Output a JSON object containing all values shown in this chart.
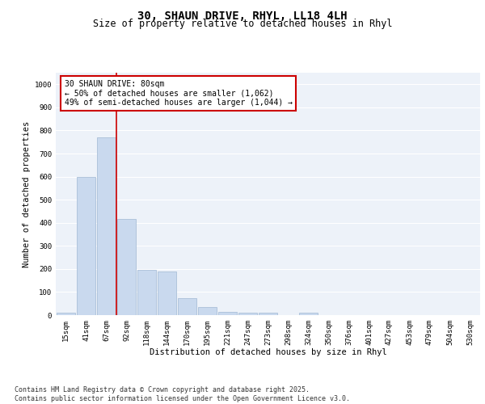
{
  "title": "30, SHAUN DRIVE, RHYL, LL18 4LH",
  "subtitle": "Size of property relative to detached houses in Rhyl",
  "xlabel": "Distribution of detached houses by size in Rhyl",
  "ylabel": "Number of detached properties",
  "categories": [
    "15sqm",
    "41sqm",
    "67sqm",
    "92sqm",
    "118sqm",
    "144sqm",
    "170sqm",
    "195sqm",
    "221sqm",
    "247sqm",
    "273sqm",
    "298sqm",
    "324sqm",
    "350sqm",
    "376sqm",
    "401sqm",
    "427sqm",
    "453sqm",
    "479sqm",
    "504sqm",
    "530sqm"
  ],
  "values": [
    10,
    600,
    770,
    415,
    195,
    190,
    75,
    35,
    15,
    12,
    10,
    0,
    10,
    0,
    0,
    0,
    0,
    0,
    0,
    0,
    0
  ],
  "bar_color": "#c9d9ee",
  "bar_edge_color": "#aabfd8",
  "vline_color": "#cc0000",
  "vline_x_index": 2.5,
  "annotation_text": "30 SHAUN DRIVE: 80sqm\n← 50% of detached houses are smaller (1,062)\n49% of semi-detached houses are larger (1,044) →",
  "annotation_box_color": "#ffffff",
  "annotation_box_edge_color": "#cc0000",
  "ylim": [
    0,
    1050
  ],
  "yticks": [
    0,
    100,
    200,
    300,
    400,
    500,
    600,
    700,
    800,
    900,
    1000
  ],
  "footnote": "Contains HM Land Registry data © Crown copyright and database right 2025.\nContains public sector information licensed under the Open Government Licence v3.0.",
  "bg_color": "#edf2f9",
  "grid_color": "#ffffff",
  "title_fontsize": 10,
  "subtitle_fontsize": 8.5,
  "axis_label_fontsize": 7.5,
  "tick_fontsize": 6.5,
  "annotation_fontsize": 7,
  "footnote_fontsize": 6
}
